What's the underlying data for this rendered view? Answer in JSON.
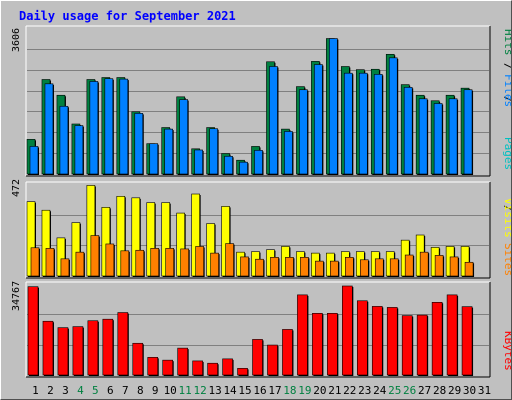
{
  "colors": {
    "background": "#c0c0c0",
    "plot_bg": "#c0c0c0",
    "title": "#0000ff",
    "pages": "#00c0c0",
    "files": "#0080ff",
    "hits": "#008040",
    "sites": "#ff8000",
    "visits": "#ffff00",
    "kbytes": "#ff0000",
    "weekend_day": "#008040",
    "weekday": "#000000"
  },
  "chart_data": [
    {
      "type": "bar",
      "title": "Daily usage for September 2021",
      "ylabel_parts": [
        "Pages",
        "Files",
        "Hits"
      ],
      "max_label": "3606",
      "ylim": [
        0,
        3606
      ],
      "categories": [
        "1",
        "2",
        "3",
        "4",
        "5",
        "6",
        "7",
        "8",
        "9",
        "10",
        "11",
        "12",
        "13",
        "14",
        "15",
        "16",
        "17",
        "18",
        "19",
        "20",
        "21",
        "22",
        "23",
        "24",
        "25",
        "26",
        "27",
        "28",
        "29",
        "30",
        "31"
      ],
      "weekend_days": [
        "4",
        "5",
        "11",
        "12",
        "18",
        "19",
        "25",
        "26"
      ],
      "series": [
        {
          "name": "Hits",
          "values": [
            880,
            2400,
            2000,
            1270,
            2400,
            2450,
            2450,
            1580,
            770,
            1180,
            1960,
            640,
            1180,
            520,
            350,
            700,
            2850,
            1140,
            2220,
            2860,
            3440,
            2730,
            2650,
            2660,
            3040,
            2270,
            2000,
            1860,
            2000,
            2180,
            0
          ]
        },
        {
          "name": "Files",
          "values": [
            700,
            2290,
            1720,
            1230,
            2350,
            2420,
            2410,
            1540,
            770,
            1140,
            1890,
            610,
            1150,
            450,
            300,
            600,
            2730,
            1080,
            2140,
            2780,
            3440,
            2560,
            2560,
            2530,
            2950,
            2200,
            1910,
            1790,
            1910,
            2140,
            0
          ]
        },
        {
          "name": "Pages",
          "values": [
            0,
            0,
            0,
            0,
            0,
            0,
            0,
            0,
            0,
            0,
            0,
            0,
            0,
            0,
            0,
            0,
            0,
            0,
            0,
            0,
            0,
            0,
            0,
            0,
            0,
            0,
            0,
            0,
            0,
            0,
            0
          ]
        }
      ]
    },
    {
      "type": "bar",
      "ylabel_parts": [
        "Sites",
        "Visits"
      ],
      "max_label": "472",
      "ylim": [
        0,
        472
      ],
      "categories": [
        "1",
        "2",
        "3",
        "4",
        "5",
        "6",
        "7",
        "8",
        "9",
        "10",
        "11",
        "12",
        "13",
        "14",
        "15",
        "16",
        "17",
        "18",
        "19",
        "20",
        "21",
        "22",
        "23",
        "24",
        "25",
        "26",
        "27",
        "28",
        "29",
        "30",
        "31"
      ],
      "series": [
        {
          "name": "Visits",
          "values": [
            390,
            345,
            200,
            280,
            475,
            360,
            418,
            410,
            385,
            385,
            330,
            430,
            275,
            365,
            125,
            128,
            138,
            155,
            128,
            120,
            120,
            128,
            128,
            128,
            128,
            188,
            215,
            150,
            155,
            155,
            0
          ]
        },
        {
          "name": "Sites",
          "values": [
            148,
            145,
            90,
            125,
            212,
            168,
            132,
            135,
            145,
            145,
            142,
            155,
            120,
            170,
            100,
            88,
            98,
            98,
            98,
            78,
            78,
            98,
            85,
            90,
            90,
            110,
            125,
            108,
            100,
            72,
            0
          ]
        }
      ]
    },
    {
      "type": "bar",
      "ylabel_parts": [
        "KBytes"
      ],
      "max_label": "34767",
      "ylim": [
        0,
        34767
      ],
      "categories": [
        "1",
        "2",
        "3",
        "4",
        "5",
        "6",
        "7",
        "8",
        "9",
        "10",
        "11",
        "12",
        "13",
        "14",
        "15",
        "16",
        "17",
        "18",
        "19",
        "20",
        "21",
        "22",
        "23",
        "24",
        "25",
        "26",
        "27",
        "28",
        "29",
        "30",
        "31"
      ],
      "series": [
        {
          "name": "KBytes",
          "values": [
            34500,
            21000,
            18500,
            18900,
            21200,
            21800,
            24400,
            12400,
            6900,
            5800,
            10500,
            5500,
            4600,
            6300,
            2600,
            13900,
            11700,
            17800,
            31300,
            24100,
            24100,
            34767,
            29000,
            26800,
            26400,
            23200,
            23400,
            28400,
            31300,
            26700,
            0
          ]
        }
      ]
    }
  ]
}
